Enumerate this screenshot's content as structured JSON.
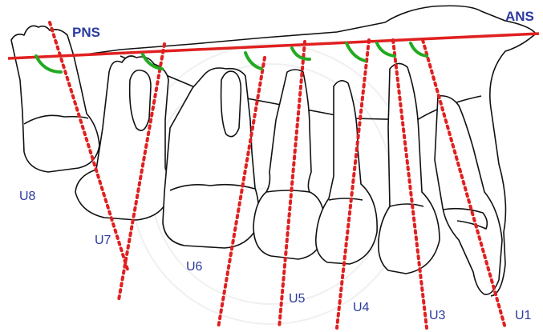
{
  "labels": {
    "pns": "PNS",
    "ans": "ANS",
    "teeth": [
      "U8",
      "U7",
      "U6",
      "U5",
      "U4",
      "U3",
      "U1"
    ]
  },
  "colors": {
    "reference_line": "#e02020",
    "tooth_axis": "#e02020",
    "angle_arc": "#22aa22",
    "label_text": "#2a3aa0",
    "outline": "#111111"
  }
}
